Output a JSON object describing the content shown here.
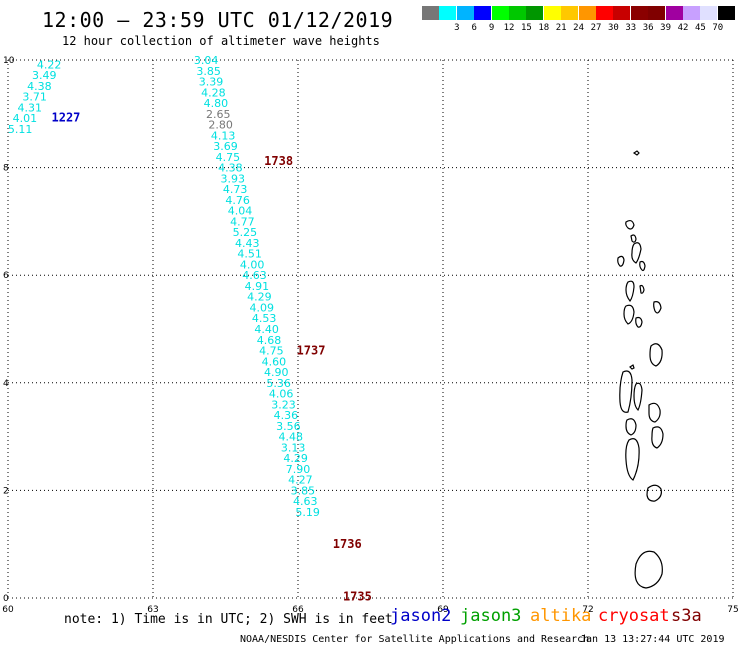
{
  "header": {
    "title": "12:00 – 23:59 UTC 01/12/2019",
    "subtitle": "12 hour collection of altimeter wave heights"
  },
  "colorbar": {
    "unit": "(ft)",
    "bins": [
      {
        "color": "#777777",
        "label": ""
      },
      {
        "color": "#00ffff",
        "label": "3"
      },
      {
        "color": "#00b4ff",
        "label": "6"
      },
      {
        "color": "#0000ff",
        "label": "9"
      },
      {
        "color": "#00ff00",
        "label": "12"
      },
      {
        "color": "#00c800",
        "label": "15"
      },
      {
        "color": "#009600",
        "label": "18"
      },
      {
        "color": "#ffff00",
        "label": "21"
      },
      {
        "color": "#ffc800",
        "label": "24"
      },
      {
        "color": "#ff9600",
        "label": "27"
      },
      {
        "color": "#ff0000",
        "label": "30"
      },
      {
        "color": "#c80000",
        "label": "33"
      },
      {
        "color": "#8b0000",
        "label": "36"
      },
      {
        "color": "#800000",
        "label": "39"
      },
      {
        "color": "#a000a0",
        "label": "42"
      },
      {
        "color": "#c8a0ff",
        "label": "45"
      },
      {
        "color": "#e0e0ff",
        "label": "70"
      },
      {
        "color": "#000000",
        "label": ""
      }
    ]
  },
  "axes": {
    "x_ticks": [
      "60",
      "63",
      "66",
      "69",
      "72",
      "75"
    ],
    "x_values": [
      60,
      63,
      66,
      69,
      72,
      75
    ],
    "y_ticks": [
      "0",
      "2",
      "4",
      "6",
      "8",
      "10"
    ],
    "y_values": [
      0,
      2,
      4,
      6,
      8,
      10
    ],
    "xlim": [
      60,
      75
    ],
    "ylim": [
      0,
      10
    ],
    "grid": "dotted"
  },
  "tracks": [
    {
      "name": "track-1227",
      "time_label": "1227",
      "time_color": "#0000c8",
      "time_pos": {
        "lon": 60.9,
        "lat": 8.93
      },
      "points": [
        {
          "lon": 60.85,
          "lat": 9.92,
          "swh": "4.22",
          "color": "#00e0e0"
        },
        {
          "lon": 60.75,
          "lat": 9.72,
          "swh": "3.49",
          "color": "#00e0e0"
        },
        {
          "lon": 60.65,
          "lat": 9.52,
          "swh": "4.38",
          "color": "#00e0e0"
        },
        {
          "lon": 60.55,
          "lat": 9.32,
          "swh": "3.71",
          "color": "#00e0e0"
        },
        {
          "lon": 60.45,
          "lat": 9.12,
          "swh": "4.31",
          "color": "#00e0e0"
        },
        {
          "lon": 60.35,
          "lat": 8.92,
          "swh": "4.01",
          "color": "#00e0e0"
        },
        {
          "lon": 60.25,
          "lat": 8.72,
          "swh": "5.11",
          "color": "#00e0e0"
        }
      ]
    },
    {
      "name": "track-1738-1735",
      "time_labels": [
        {
          "text": "1738",
          "lon": 65.3,
          "lat": 8.12,
          "color": "#800000"
        },
        {
          "text": "1737",
          "lon": 65.97,
          "lat": 4.6,
          "color": "#800000"
        },
        {
          "text": "1736",
          "lon": 66.72,
          "lat": 1.0,
          "color": "#800000"
        },
        {
          "text": "1735",
          "lon": 66.93,
          "lat": 0.03,
          "color": "#800000"
        }
      ],
      "points": [
        {
          "lon": 64.1,
          "lat": 10.0,
          "swh": "3.04",
          "color": "#00e0e0"
        },
        {
          "lon": 64.15,
          "lat": 9.8,
          "swh": "3.85",
          "color": "#00e0e0"
        },
        {
          "lon": 64.2,
          "lat": 9.6,
          "swh": "3.39",
          "color": "#00e0e0"
        },
        {
          "lon": 64.25,
          "lat": 9.4,
          "swh": "4.28",
          "color": "#00e0e0"
        },
        {
          "lon": 64.3,
          "lat": 9.2,
          "swh": "4.80",
          "color": "#00e0e0"
        },
        {
          "lon": 64.35,
          "lat": 9.0,
          "swh": "2.65",
          "color": "#777777"
        },
        {
          "lon": 64.4,
          "lat": 8.8,
          "swh": "2.80",
          "color": "#777777"
        },
        {
          "lon": 64.45,
          "lat": 8.6,
          "swh": "4.13",
          "color": "#00e0e0"
        },
        {
          "lon": 64.5,
          "lat": 8.4,
          "swh": "3.69",
          "color": "#00e0e0"
        },
        {
          "lon": 64.55,
          "lat": 8.2,
          "swh": "4.75",
          "color": "#00e0e0"
        },
        {
          "lon": 64.6,
          "lat": 8.0,
          "swh": "4.38",
          "color": "#00e0e0"
        },
        {
          "lon": 64.65,
          "lat": 7.8,
          "swh": "3.93",
          "color": "#00e0e0"
        },
        {
          "lon": 64.7,
          "lat": 7.6,
          "swh": "4.73",
          "color": "#00e0e0"
        },
        {
          "lon": 64.75,
          "lat": 7.4,
          "swh": "4.76",
          "color": "#00e0e0"
        },
        {
          "lon": 64.8,
          "lat": 7.2,
          "swh": "4.04",
          "color": "#00e0e0"
        },
        {
          "lon": 64.85,
          "lat": 7.0,
          "swh": "4.77",
          "color": "#00e0e0"
        },
        {
          "lon": 64.9,
          "lat": 6.8,
          "swh": "5.25",
          "color": "#00e0e0"
        },
        {
          "lon": 64.95,
          "lat": 6.6,
          "swh": "4.43",
          "color": "#00e0e0"
        },
        {
          "lon": 65.0,
          "lat": 6.4,
          "swh": "4.51",
          "color": "#00e0e0"
        },
        {
          "lon": 65.05,
          "lat": 6.2,
          "swh": "4.00",
          "color": "#00e0e0"
        },
        {
          "lon": 65.1,
          "lat": 6.0,
          "swh": "4.63",
          "color": "#00e0e0"
        },
        {
          "lon": 65.15,
          "lat": 5.8,
          "swh": "4.91",
          "color": "#00e0e0"
        },
        {
          "lon": 65.2,
          "lat": 5.6,
          "swh": "4.29",
          "color": "#00e0e0"
        },
        {
          "lon": 65.25,
          "lat": 5.4,
          "swh": "4.09",
          "color": "#00e0e0"
        },
        {
          "lon": 65.3,
          "lat": 5.2,
          "swh": "4.53",
          "color": "#00e0e0"
        },
        {
          "lon": 65.35,
          "lat": 5.0,
          "swh": "4.40",
          "color": "#00e0e0"
        },
        {
          "lon": 65.4,
          "lat": 4.8,
          "swh": "4.68",
          "color": "#00e0e0"
        },
        {
          "lon": 65.45,
          "lat": 4.6,
          "swh": "4.75",
          "color": "#00e0e0"
        },
        {
          "lon": 65.5,
          "lat": 4.4,
          "swh": "4.60",
          "color": "#00e0e0"
        },
        {
          "lon": 65.55,
          "lat": 4.2,
          "swh": "4.90",
          "color": "#00e0e0"
        },
        {
          "lon": 65.6,
          "lat": 4.0,
          "swh": "5.36",
          "color": "#00e0e0"
        },
        {
          "lon": 65.65,
          "lat": 3.8,
          "swh": "4.06",
          "color": "#00e0e0"
        },
        {
          "lon": 65.7,
          "lat": 3.6,
          "swh": "3.23",
          "color": "#00e0e0"
        },
        {
          "lon": 65.75,
          "lat": 3.4,
          "swh": "4.36",
          "color": "#00e0e0"
        },
        {
          "lon": 65.8,
          "lat": 3.2,
          "swh": "3.56",
          "color": "#00e0e0"
        },
        {
          "lon": 65.85,
          "lat": 3.0,
          "swh": "4.48",
          "color": "#00e0e0"
        },
        {
          "lon": 65.9,
          "lat": 2.8,
          "swh": "3.13",
          "color": "#00e0e0"
        },
        {
          "lon": 65.95,
          "lat": 2.6,
          "swh": "4.29",
          "color": "#00e0e0"
        },
        {
          "lon": 66.0,
          "lat": 2.4,
          "swh": "7.90",
          "color": "#00e0e0"
        },
        {
          "lon": 66.05,
          "lat": 2.2,
          "swh": "4.27",
          "color": "#00e0e0"
        },
        {
          "lon": 66.1,
          "lat": 2.0,
          "swh": "3.85",
          "color": "#00e0e0"
        },
        {
          "lon": 66.15,
          "lat": 1.8,
          "swh": "4.63",
          "color": "#00e0e0"
        },
        {
          "lon": 66.2,
          "lat": 1.6,
          "swh": "5.19",
          "color": "#00e0e0"
        }
      ]
    }
  ],
  "footer": {
    "note": "note: 1) Time is in UTC; 2) SWH is in feet",
    "satellites": [
      {
        "name": "jason2",
        "color": "#0000c8"
      },
      {
        "name": "jason3",
        "color": "#00a000"
      },
      {
        "name": "altika",
        "color": "#ff9600"
      },
      {
        "name": "cryosat",
        "color": "#ff0000"
      },
      {
        "name": "s3a",
        "color": "#800000"
      }
    ],
    "credit": "NOAA/NESDIS Center for Satellite Applications and Research",
    "timestamp": "Jan 13 13:27:44 UTC 2019"
  }
}
